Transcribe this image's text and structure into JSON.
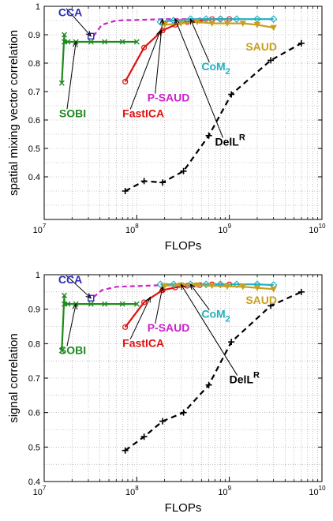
{
  "colors": {
    "CCA": "#2b2bb8",
    "SOBI": "#1f8a1f",
    "FastICA": "#e01010",
    "P-SAUD": "#cc22cc",
    "CoM2": "#20b0c0",
    "SAUD": "#c8a020",
    "DelLR": "#000000"
  },
  "chart_data": [
    {
      "type": "line",
      "xscale": "log",
      "xlim": [
        10000000,
        10000000000
      ],
      "ylim": [
        0.25,
        1.0
      ],
      "xlabel": "FLOPs",
      "ylabel": "spatial mixing vector correlation",
      "xticks": [
        10000000,
        100000000,
        1000000000,
        10000000000
      ],
      "xtick_labels": [
        {
          "base": "10",
          "exp": "7"
        },
        {
          "base": "10",
          "exp": "8"
        },
        {
          "base": "10",
          "exp": "9"
        },
        {
          "base": "10",
          "exp": "10"
        }
      ],
      "yticks": [
        0.4,
        0.5,
        0.6,
        0.7,
        0.8,
        0.9,
        1
      ],
      "ytick_labels": [
        "0.4",
        "0.5",
        "0.6",
        "0.7",
        "0.8",
        "0.9",
        "1"
      ],
      "grid": true,
      "series": [
        {
          "name": "SOBI",
          "color": "#1f8a1f",
          "dash": "",
          "marker": "x",
          "x": [
            15500000,
            16500000,
            16500000,
            18000000,
            22000000,
            32000000,
            45000000,
            70000000,
            100000000
          ],
          "y": [
            0.73,
            0.9,
            0.875,
            0.875,
            0.875,
            0.875,
            0.875,
            0.875,
            0.875
          ]
        },
        {
          "name": "FastICA",
          "color": "#e01010",
          "dash": "",
          "marker": "o",
          "x": [
            75000000,
            120000000,
            190000000,
            260000000,
            350000000,
            480000000,
            650000000,
            800000000,
            1000000000
          ],
          "y": [
            0.735,
            0.855,
            0.915,
            0.935,
            0.945,
            0.95,
            0.955,
            0.955,
            0.955
          ]
        },
        {
          "name": "P-SAUD",
          "color": "#cc22cc",
          "dash": "6,4",
          "marker": "",
          "x": [
            34000000,
            42000000,
            60000000,
            100000000,
            200000000,
            400000000,
            800000000,
            1100000000
          ],
          "y": [
            0.895,
            0.935,
            0.95,
            0.952,
            0.955,
            0.955,
            0.955,
            0.955
          ]
        },
        {
          "name": "CCA",
          "color": "#2b2bb8",
          "dash": "",
          "marker": "s",
          "x": [
            32000000
          ],
          "y": [
            0.895
          ]
        },
        {
          "name": "CoM2",
          "color": "#20b0c0",
          "dash": "",
          "marker": "d",
          "x": [
            180000000,
            250000000,
            380000000,
            560000000,
            800000000,
            1200000000,
            2000000000,
            3000000000
          ],
          "y": [
            0.945,
            0.95,
            0.955,
            0.955,
            0.955,
            0.955,
            0.955,
            0.955
          ]
        },
        {
          "name": "SAUD",
          "color": "#c8a020",
          "dash": "",
          "marker": "v",
          "x": [
            200000000,
            300000000,
            450000000,
            650000000,
            950000000,
            1400000000,
            2000000000,
            3000000000
          ],
          "y": [
            0.935,
            0.94,
            0.945,
            0.94,
            0.94,
            0.94,
            0.935,
            0.925
          ]
        },
        {
          "name": "DelLR",
          "color": "#000000",
          "dash": "7,5",
          "marker": "+",
          "x": [
            75000000,
            120000000,
            190000000,
            320000000,
            600000000,
            1050000000,
            2800000000,
            6000000000
          ],
          "y": [
            0.35,
            0.385,
            0.38,
            0.42,
            0.545,
            0.69,
            0.81,
            0.87
          ]
        }
      ],
      "annotations": [
        {
          "text": "CCA",
          "sub": "",
          "sup": "",
          "color": "#2b2bb8",
          "x": 14200000,
          "y": 0.965,
          "arrow": [
            32000000,
            0.895
          ]
        },
        {
          "text": "SOBI",
          "sub": "",
          "sup": "",
          "color": "#1f8a1f",
          "x": 14500000,
          "y": 0.61,
          "arrow": [
            22000000,
            0.875
          ]
        },
        {
          "text": "FastICA",
          "sub": "",
          "sup": "",
          "color": "#e01010",
          "x": 70000000,
          "y": 0.61,
          "arrow": [
            180000000,
            0.915
          ]
        },
        {
          "text": "P-SAUD",
          "sub": "",
          "sup": "",
          "color": "#cc22cc",
          "x": 130000000,
          "y": 0.665,
          "arrow": [
            190000000,
            0.955
          ]
        },
        {
          "text": "CoM",
          "sub": "2",
          "sup": "",
          "color": "#20b0c0",
          "x": 500000000,
          "y": 0.775,
          "arrow": [
            380000000,
            0.955
          ]
        },
        {
          "text": "SAUD",
          "sub": "",
          "sup": "",
          "color": "#c8a020",
          "x": 1500000000,
          "y": 0.845,
          "arrow": null
        },
        {
          "text": "DelL",
          "sub": "",
          "sup": "R",
          "color": "#000000",
          "x": 700000000,
          "y": 0.51,
          "arrow": [
            260000000,
            0.955
          ]
        }
      ]
    },
    {
      "type": "line",
      "xscale": "log",
      "xlim": [
        10000000,
        10000000000
      ],
      "ylim": [
        0.4,
        1.0
      ],
      "xlabel": "FLOPs",
      "ylabel": "signal correlation",
      "xticks": [
        10000000,
        100000000,
        1000000000,
        10000000000
      ],
      "xtick_labels": [
        {
          "base": "10",
          "exp": "7"
        },
        {
          "base": "10",
          "exp": "8"
        },
        {
          "base": "10",
          "exp": "9"
        },
        {
          "base": "10",
          "exp": "10"
        }
      ],
      "yticks": [
        0.4,
        0.5,
        0.6,
        0.7,
        0.8,
        0.9,
        1
      ],
      "ytick_labels": [
        "0.4",
        "0.5",
        "0.6",
        "0.7",
        "0.8",
        "0.9",
        "1"
      ],
      "grid": true,
      "series": [
        {
          "name": "SOBI",
          "color": "#1f8a1f",
          "dash": "",
          "marker": "x",
          "x": [
            15500000,
            16500000,
            16500000,
            18000000,
            22000000,
            32000000,
            45000000,
            70000000,
            100000000
          ],
          "y": [
            0.78,
            0.94,
            0.915,
            0.915,
            0.915,
            0.915,
            0.915,
            0.915,
            0.915
          ]
        },
        {
          "name": "FastICA",
          "color": "#e01010",
          "dash": "",
          "marker": "o",
          "x": [
            75000000,
            120000000,
            190000000,
            260000000,
            350000000,
            480000000,
            650000000,
            800000000,
            1000000000
          ],
          "y": [
            0.848,
            0.92,
            0.955,
            0.963,
            0.968,
            0.97,
            0.972,
            0.972,
            0.972
          ]
        },
        {
          "name": "P-SAUD",
          "color": "#cc22cc",
          "dash": "6,4",
          "marker": "",
          "x": [
            34000000,
            42000000,
            60000000,
            100000000,
            200000000,
            400000000,
            800000000,
            1100000000
          ],
          "y": [
            0.935,
            0.955,
            0.965,
            0.967,
            0.97,
            0.972,
            0.972,
            0.972
          ]
        },
        {
          "name": "CCA",
          "color": "#2b2bb8",
          "dash": "",
          "marker": "s",
          "x": [
            32000000
          ],
          "y": [
            0.932
          ]
        },
        {
          "name": "CoM2",
          "color": "#20b0c0",
          "dash": "",
          "marker": "d",
          "x": [
            180000000,
            250000000,
            380000000,
            560000000,
            800000000,
            1200000000,
            2000000000,
            3000000000
          ],
          "y": [
            0.972,
            0.972,
            0.972,
            0.972,
            0.972,
            0.972,
            0.972,
            0.97
          ]
        },
        {
          "name": "SAUD",
          "color": "#c8a020",
          "dash": "",
          "marker": "v",
          "x": [
            200000000,
            300000000,
            450000000,
            650000000,
            950000000,
            1400000000,
            2000000000,
            3000000000
          ],
          "y": [
            0.968,
            0.97,
            0.97,
            0.968,
            0.966,
            0.965,
            0.962,
            0.958
          ]
        },
        {
          "name": "DelLR",
          "color": "#000000",
          "dash": "7,5",
          "marker": "+",
          "x": [
            75000000,
            120000000,
            190000000,
            320000000,
            600000000,
            1050000000,
            2800000000,
            6000000000
          ],
          "y": [
            0.49,
            0.53,
            0.575,
            0.6,
            0.68,
            0.805,
            0.91,
            0.95
          ]
        }
      ],
      "annotations": [
        {
          "text": "CCA",
          "sub": "",
          "sup": "",
          "color": "#2b2bb8",
          "x": 14200000,
          "y": 0.975,
          "arrow": [
            32000000,
            0.932
          ]
        },
        {
          "text": "SOBI",
          "sub": "",
          "sup": "",
          "color": "#1f8a1f",
          "x": 14500000,
          "y": 0.77,
          "arrow": [
            22000000,
            0.915
          ]
        },
        {
          "text": "FastICA",
          "sub": "",
          "sup": "",
          "color": "#e01010",
          "x": 70000000,
          "y": 0.79,
          "arrow": [
            140000000,
            0.935
          ]
        },
        {
          "text": "P-SAUD",
          "sub": "",
          "sup": "",
          "color": "#cc22cc",
          "x": 130000000,
          "y": 0.835,
          "arrow": [
            190000000,
            0.965
          ]
        },
        {
          "text": "CoM",
          "sub": "2",
          "sup": "",
          "color": "#20b0c0",
          "x": 500000000,
          "y": 0.875,
          "arrow": [
            380000000,
            0.972
          ]
        },
        {
          "text": "SAUD",
          "sub": "",
          "sup": "",
          "color": "#c8a020",
          "x": 1500000000,
          "y": 0.915,
          "arrow": null
        },
        {
          "text": "DelL",
          "sub": "",
          "sup": "R",
          "color": "#000000",
          "x": 1000000000,
          "y": 0.685,
          "arrow": [
            300000000,
            0.972
          ]
        }
      ]
    }
  ]
}
